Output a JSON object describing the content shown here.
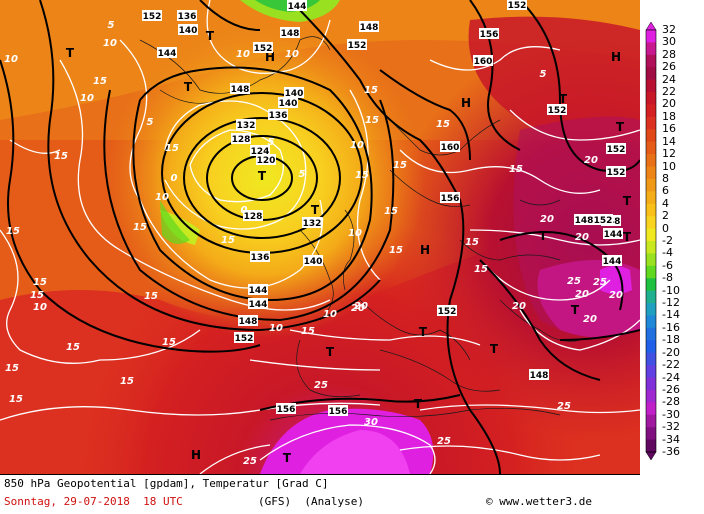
{
  "footer": {
    "title": "850 hPa Geopotential [gpdam], Temperatur [Grad C]",
    "date": "Sonntag, 29-07-2018  18 UTC",
    "model": "(GFS)  (Analyse)",
    "credit": "www.wetter3.de",
    "credit_symbol": "©"
  },
  "colorbar": {
    "ticks": [
      "32",
      "30",
      "28",
      "26",
      "24",
      "22",
      "20",
      "18",
      "16",
      "14",
      "12",
      "10",
      "8",
      "6",
      "4",
      "2",
      "0",
      "-2",
      "-4",
      "-6",
      "-8",
      "-10",
      "-12",
      "-14",
      "-16",
      "-18",
      "-20",
      "-22",
      "-24",
      "-26",
      "-28",
      "-30",
      "-32",
      "-34",
      "-36"
    ],
    "colors": [
      "#e020e0",
      "#c81890",
      "#b0105a",
      "#a00c44",
      "#b81030",
      "#c81828",
      "#d42020",
      "#dc3020",
      "#e04818",
      "#e45c18",
      "#e87018",
      "#ec8418",
      "#f09818",
      "#f4ac18",
      "#f8c018",
      "#f8d420",
      "#f0e820",
      "#c8e820",
      "#98e020",
      "#60d820",
      "#20c040",
      "#20b090",
      "#20a0c0",
      "#2088d8",
      "#2070e0",
      "#2060e8",
      "#4050e0",
      "#6040e0",
      "#8030d8",
      "#a028d0",
      "#c020c8",
      "#a018a0",
      "#801080",
      "#600860"
    ]
  },
  "map_labels": {
    "pressure_systems": [
      {
        "text": "T"
      },
      {
        "text": "T"
      },
      {
        "text": "T"
      },
      {
        "text": "T"
      },
      {
        "text": "T"
      },
      {
        "text": "T"
      },
      {
        "text": "T"
      },
      {
        "text": "T"
      },
      {
        "text": "T"
      },
      {
        "text": "T"
      },
      {
        "text": "T"
      },
      {
        "text": "T"
      },
      {
        "text": "T"
      },
      {
        "text": "T"
      },
      {
        "text": "T"
      },
      {
        "text": "T"
      },
      {
        "text": "H"
      },
      {
        "text": "H"
      },
      {
        "text": "H"
      },
      {
        "text": "H"
      },
      {
        "text": "H"
      }
    ],
    "geopotential": [
      {
        "text": "136"
      },
      {
        "text": "140"
      },
      {
        "text": "144"
      },
      {
        "text": "152"
      },
      {
        "text": "152"
      },
      {
        "text": "148"
      },
      {
        "text": "152"
      },
      {
        "text": "156"
      },
      {
        "text": "160"
      },
      {
        "text": "148"
      },
      {
        "text": "140"
      },
      {
        "text": "136"
      },
      {
        "text": "132"
      },
      {
        "text": "128"
      },
      {
        "text": "124"
      },
      {
        "text": "120"
      },
      {
        "text": "128"
      },
      {
        "text": "132"
      },
      {
        "text": "136"
      },
      {
        "text": "140"
      },
      {
        "text": "144"
      },
      {
        "text": "144"
      },
      {
        "text": "148"
      },
      {
        "text": "152"
      },
      {
        "text": "160"
      },
      {
        "text": "156"
      },
      {
        "text": "152"
      },
      {
        "text": "148"
      },
      {
        "text": "152"
      },
      {
        "text": "156"
      },
      {
        "text": "156"
      },
      {
        "text": "148"
      },
      {
        "text": "148"
      },
      {
        "text": "144"
      },
      {
        "text": "144"
      },
      {
        "text": "144"
      },
      {
        "text": "140"
      },
      {
        "text": "152"
      },
      {
        "text": "148"
      },
      {
        "text": "152"
      },
      {
        "text": "152"
      },
      {
        "text": "152"
      }
    ],
    "temperature": [
      {
        "text": "10"
      },
      {
        "text": "10"
      },
      {
        "text": "5"
      },
      {
        "text": "10"
      },
      {
        "text": "15"
      },
      {
        "text": "15"
      },
      {
        "text": "15"
      },
      {
        "text": "15"
      },
      {
        "text": "10"
      },
      {
        "text": "15"
      },
      {
        "text": "15"
      },
      {
        "text": "15"
      },
      {
        "text": "15"
      },
      {
        "text": "15"
      },
      {
        "text": "15"
      },
      {
        "text": "15"
      },
      {
        "text": "10"
      },
      {
        "text": "15"
      },
      {
        "text": "15"
      },
      {
        "text": "15"
      },
      {
        "text": "20"
      },
      {
        "text": "20"
      },
      {
        "text": "20"
      },
      {
        "text": "20"
      },
      {
        "text": "20"
      },
      {
        "text": "25"
      },
      {
        "text": "25"
      },
      {
        "text": "25"
      },
      {
        "text": "20"
      },
      {
        "text": "20"
      },
      {
        "text": "25"
      },
      {
        "text": "30"
      },
      {
        "text": "25"
      },
      {
        "text": "25"
      },
      {
        "text": "15"
      },
      {
        "text": "15"
      },
      {
        "text": "10"
      },
      {
        "text": "5"
      },
      {
        "text": "0"
      },
      {
        "text": "0"
      },
      {
        "text": "5"
      },
      {
        "text": "10"
      },
      {
        "text": "15"
      },
      {
        "text": "15"
      },
      {
        "text": "10"
      },
      {
        "text": "15"
      },
      {
        "text": "5"
      },
      {
        "text": "10"
      },
      {
        "text": "15"
      },
      {
        "text": "15"
      },
      {
        "text": "20"
      },
      {
        "text": "20"
      },
      {
        "text": "15"
      },
      {
        "text": "10"
      },
      {
        "text": "15"
      },
      {
        "text": "5"
      },
      {
        "text": "10"
      },
      {
        "text": "15"
      },
      {
        "text": "15"
      }
    ]
  }
}
